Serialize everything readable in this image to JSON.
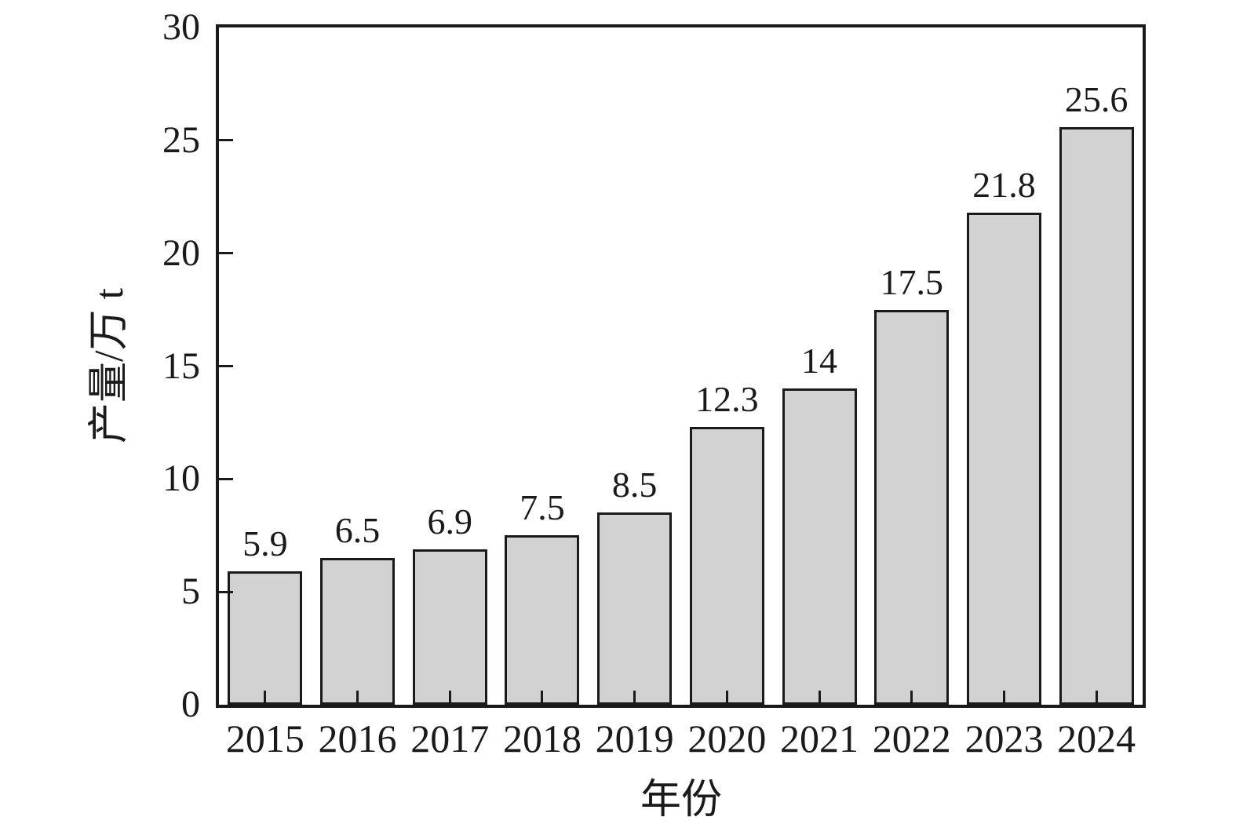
{
  "chart_data": {
    "type": "bar",
    "title": "",
    "xlabel": "年份",
    "ylabel": "产量/万 t",
    "categories": [
      "2015",
      "2016",
      "2017",
      "2018",
      "2019",
      "2020",
      "2021",
      "2022",
      "2023",
      "2024"
    ],
    "values": [
      5.9,
      6.5,
      6.9,
      7.5,
      8.5,
      12.3,
      14,
      17.5,
      21.8,
      25.6
    ],
    "value_labels": [
      "5.9",
      "6.5",
      "6.9",
      "7.5",
      "8.5",
      "12.3",
      "14",
      "17.5",
      "21.8",
      "25.6"
    ],
    "ylim": [
      0,
      30
    ],
    "yticks": [
      0,
      5,
      10,
      15,
      20,
      25,
      30
    ],
    "grid": false,
    "legend": "none",
    "bar_labels_shown": true,
    "colors": {
      "bar_fill": "#d2d2d2",
      "bar_border": "#1a1a1a",
      "axis": "#1a1a1a",
      "text": "#1a1a1a",
      "background": "#ffffff"
    }
  }
}
